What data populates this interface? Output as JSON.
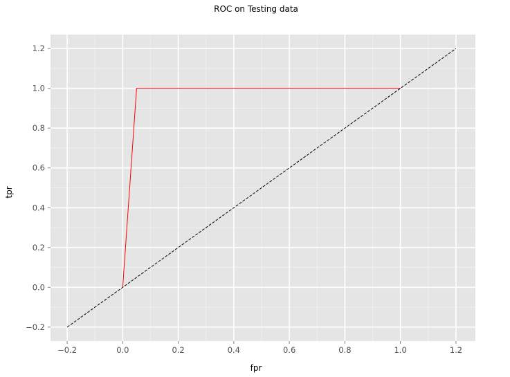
{
  "chart_data": {
    "type": "line",
    "title": "ROC on Testing data",
    "xlabel": "fpr",
    "ylabel": "tpr",
    "xlim": [
      -0.26,
      1.27
    ],
    "ylim": [
      -0.27,
      1.27
    ],
    "x_ticks": [
      -0.2,
      0.0,
      0.2,
      0.4,
      0.6,
      0.8,
      1.0,
      1.2
    ],
    "x_tick_labels": [
      "−0.2",
      "0.0",
      "0.2",
      "0.4",
      "0.6",
      "0.8",
      "1.0",
      "1.2"
    ],
    "y_ticks": [
      -0.2,
      0.0,
      0.2,
      0.4,
      0.6,
      0.8,
      1.0,
      1.2
    ],
    "y_tick_labels": [
      "−0.2",
      "0.0",
      "0.2",
      "0.4",
      "0.6",
      "0.8",
      "1.0",
      "1.2"
    ],
    "grid": true,
    "legend": "none",
    "background_color": "#e5e5e5",
    "series": [
      {
        "style": "solid",
        "color": "#ff0000",
        "points": [
          [
            0.0,
            0.0
          ],
          [
            0.05,
            1.0
          ],
          [
            1.0,
            1.0
          ]
        ]
      },
      {
        "style": "dashed",
        "color": "#000000",
        "points": [
          [
            -0.2,
            -0.2
          ],
          [
            1.2,
            1.2
          ]
        ]
      }
    ]
  }
}
